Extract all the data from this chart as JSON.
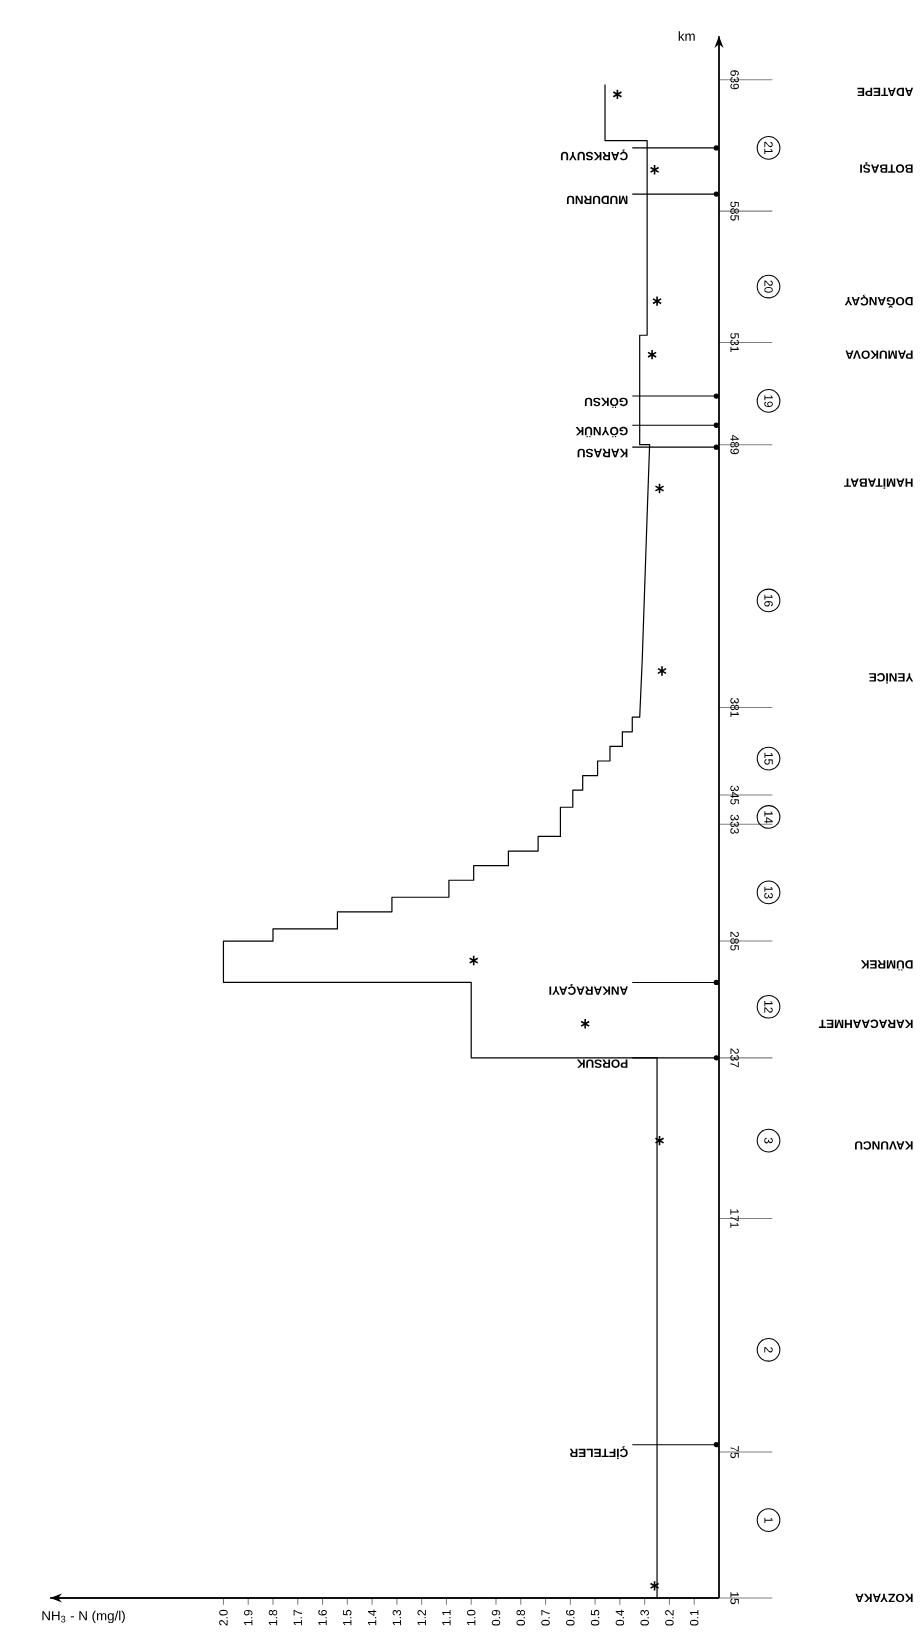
{
  "chart_data": {
    "type": "line",
    "xlabel": "NH$_{3}$ - N (mg/l)",
    "ylabel": "km",
    "xlim": [
      2.7,
      0
    ],
    "xticks": [
      0.1,
      0.2,
      0.3,
      0.4,
      0.5,
      0.6,
      0.7,
      0.8,
      0.9,
      {
        "value": 1.0,
        "label": "1.0"
      },
      1.1,
      1.2,
      1.3,
      1.4,
      1.5,
      1.6,
      1.7,
      1.8,
      1.9,
      {
        "value": 2.0,
        "label": "2.0"
      }
    ],
    "ylim": [
      15,
      657
    ],
    "yticks": [
      15,
      75,
      171,
      237,
      285,
      333,
      345,
      381,
      489,
      531,
      585,
      639
    ],
    "series": [
      {
        "color": "#000000",
        "x": [
          0.25,
          0.25,
          1.0,
          1.0,
          2.0,
          2.0,
          1.8,
          1.8,
          1.54,
          1.54,
          1.32,
          1.32,
          1.09,
          1.09,
          0.99,
          0.99,
          0.85,
          0.85,
          0.73,
          0.73,
          0.64,
          0.64,
          0.59,
          0.59,
          0.55,
          0.55,
          0.49,
          0.49,
          0.44,
          0.44,
          0.39,
          0.39,
          0.35,
          0.35,
          0.32,
          0.31,
          0.3,
          0.29,
          0.28,
          0.32,
          0.32,
          0.29,
          0.29,
          0.46,
          0.46
        ],
        "values": [
          15,
          237,
          237,
          268,
          268,
          285,
          285,
          290,
          290,
          297,
          297,
          303,
          303,
          310,
          310,
          316,
          316,
          322,
          322,
          328,
          328,
          340,
          340,
          347,
          347,
          353,
          353,
          359,
          359,
          365,
          365,
          371,
          371,
          377,
          377,
          400,
          430,
          460,
          489,
          489,
          534,
          534,
          614,
          614,
          637
        ]
      },
      {
        "type": "scatter",
        "marker": "cross",
        "color": "#000000",
        "x": [
          0.26,
          0.24,
          0.54,
          0.99,
          0.23,
          0.24,
          0.27,
          0.25,
          0.26,
          0.41
        ],
        "values": [
          20,
          203,
          251,
          277,
          396,
          471,
          526,
          548,
          602,
          633
        ]
      }
    ],
    "annotations": [
      "ÇİFTELER",
      "PORSUK",
      "ANKARAÇAYI",
      "KARASU",
      "GÖYNÜK",
      "GÖKSU",
      "MUDURNU",
      "ÇARKSUYU",
      "1",
      "2",
      "3",
      "12",
      "13",
      "14",
      "15",
      "16",
      "19",
      "20",
      "21",
      "KOZYAKA",
      "KAVUNCU",
      "KARACAAHMET",
      "DÜMREK",
      "YENİCE",
      "HAMİTABAT",
      "PAMUKOVA",
      "DOĞANÇAY",
      "BOTBAŞI",
      "ADATEPE"
    ]
  }
}
